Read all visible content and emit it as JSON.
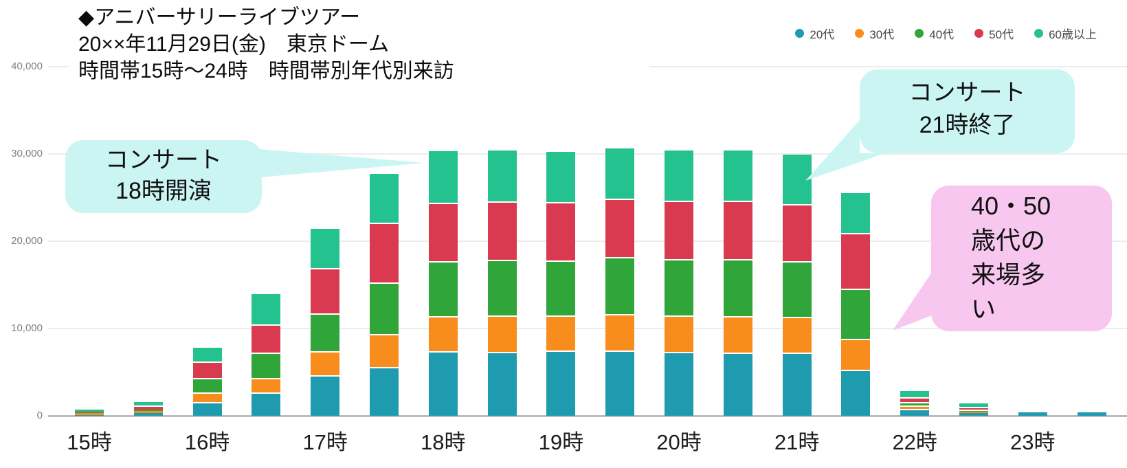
{
  "title": {
    "line1": "◆アニバーサリーライブツアー",
    "line2": "20××年11月29日(金)　東京ドーム",
    "line3": "時間帯15時～24時　時間帯別年代別来訪"
  },
  "legend": {
    "items": [
      {
        "label": "20代",
        "color": "#1f9baf"
      },
      {
        "label": "30代",
        "color": "#f88c1c"
      },
      {
        "label": "40代",
        "color": "#30a53a"
      },
      {
        "label": "50代",
        "color": "#d93a50"
      },
      {
        "label": "60歳以上",
        "color": "#23c28f"
      }
    ]
  },
  "y_axis": {
    "ticks": [
      {
        "label": "0",
        "value": 0
      },
      {
        "label": "10,000",
        "value": 10000
      },
      {
        "label": "20,000",
        "value": 20000
      },
      {
        "label": "30,000",
        "value": 30000
      },
      {
        "label": "40,000",
        "value": 40000
      }
    ]
  },
  "annotations": {
    "concert_start": {
      "lines": [
        "コンサート",
        "18時開演"
      ],
      "bg": "#cbf5f3"
    },
    "concert_end": {
      "lines": [
        "コンサート",
        "21時終了"
      ],
      "bg": "#cbf5f3"
    },
    "age_note": {
      "lines": [
        "40・50",
        "歳代の",
        "来場多",
        "い"
      ],
      "bg": "#f8c7ef"
    }
  },
  "chart_data": {
    "type": "bar",
    "stacked": true,
    "title": "時間帯15時～24時　時間帯別年代別来訪",
    "xlabel": "",
    "ylabel": "",
    "ylim": [
      0,
      40000
    ],
    "grid": true,
    "legend_position": "top-right",
    "x_tick_labels": [
      "15時",
      "16時",
      "17時",
      "18時",
      "19時",
      "20時",
      "21時",
      "22時",
      "23時"
    ],
    "categories": [
      "15:00",
      "15:30",
      "16:00",
      "16:30",
      "17:00",
      "17:30",
      "18:00",
      "18:30",
      "19:00",
      "19:30",
      "20:00",
      "20:30",
      "21:00",
      "21:30",
      "22:00",
      "22:30",
      "23:00",
      "23:30"
    ],
    "series": [
      {
        "name": "20代",
        "color": "#1f9baf",
        "values": [
          100,
          300,
          1400,
          2500,
          4500,
          5400,
          7250,
          7200,
          7300,
          7300,
          7200,
          7100,
          7100,
          5100,
          650,
          350,
          400,
          400
        ]
      },
      {
        "name": "30代",
        "color": "#f88c1c",
        "values": [
          200,
          250,
          1100,
          1700,
          2750,
          3800,
          4000,
          4100,
          4000,
          4200,
          4100,
          4200,
          4100,
          3550,
          350,
          100,
          0,
          0
        ]
      },
      {
        "name": "40代",
        "color": "#30a53a",
        "values": [
          100,
          150,
          1700,
          2900,
          4350,
          5900,
          6300,
          6400,
          6300,
          6500,
          6500,
          6500,
          6400,
          5750,
          400,
          100,
          0,
          0
        ]
      },
      {
        "name": "50代",
        "color": "#d93a50",
        "values": [
          100,
          300,
          1900,
          3200,
          5200,
          6900,
          6700,
          6700,
          6700,
          6700,
          6700,
          6700,
          6500,
          6350,
          550,
          350,
          0,
          0
        ]
      },
      {
        "name": "60歳以上",
        "color": "#23c28f",
        "values": [
          200,
          550,
          1700,
          3600,
          4600,
          5700,
          6050,
          6000,
          5900,
          5900,
          5900,
          5900,
          5800,
          4750,
          900,
          500,
          0,
          0
        ]
      }
    ]
  }
}
